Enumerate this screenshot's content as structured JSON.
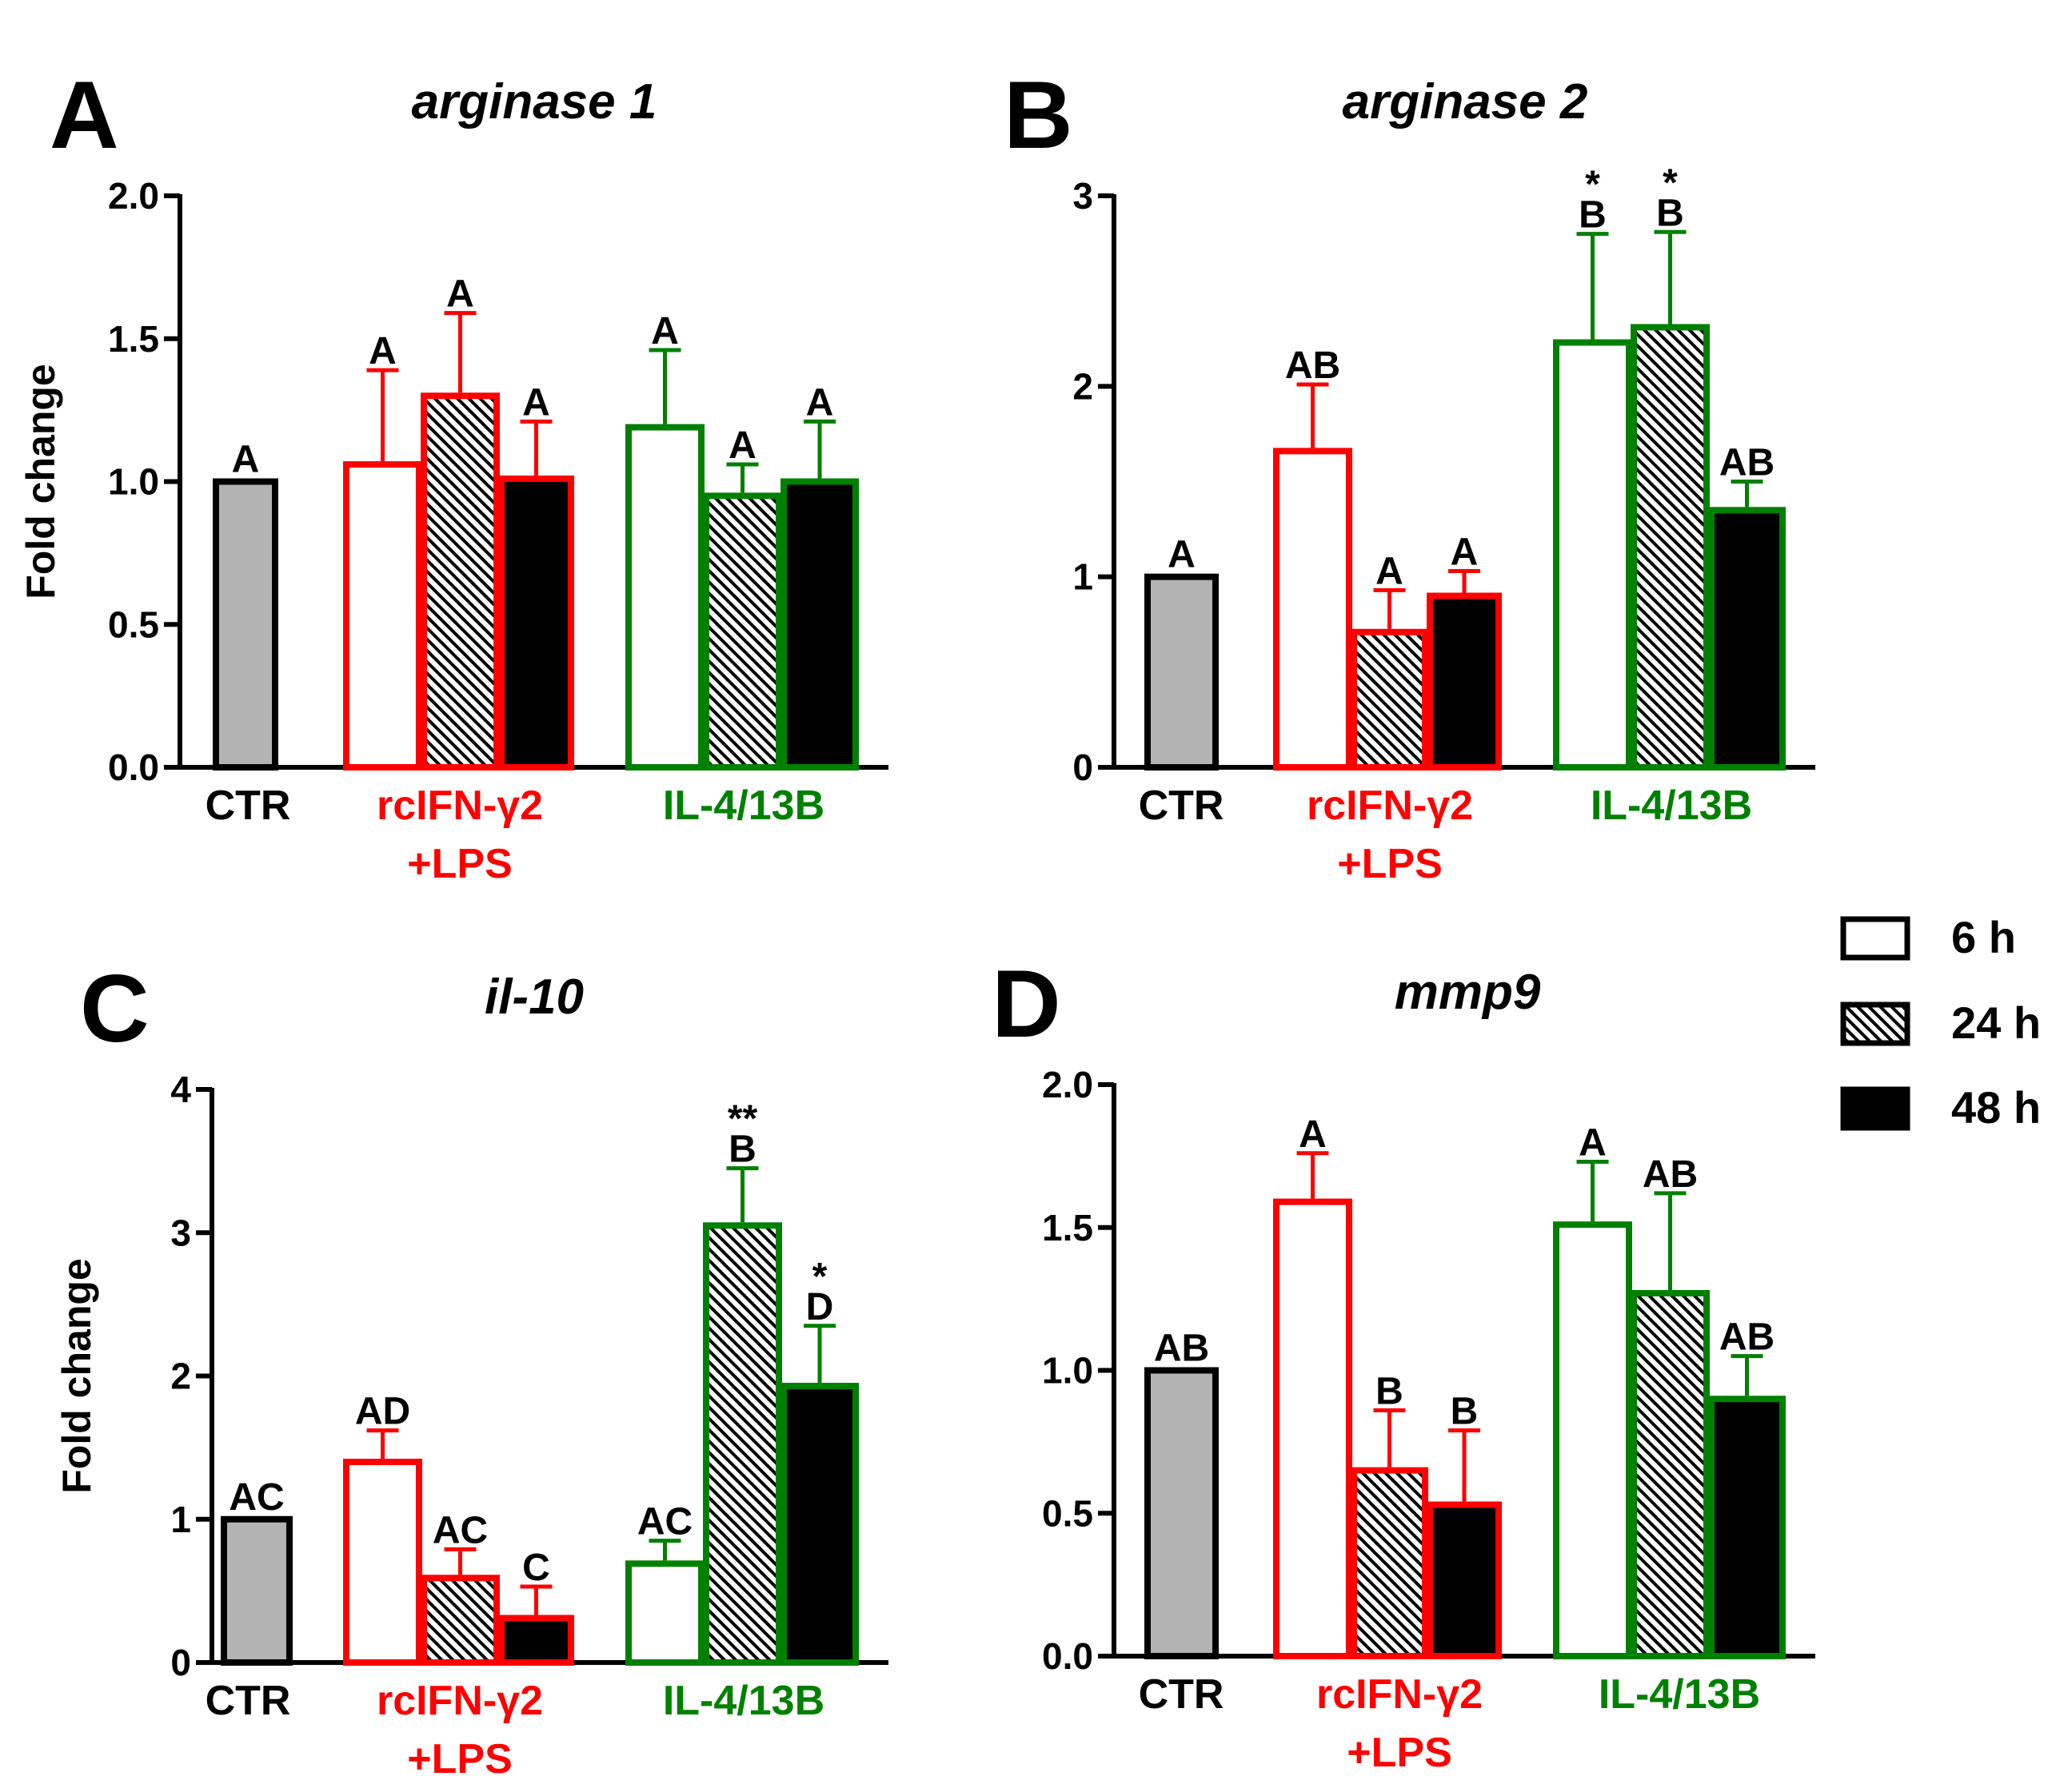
{
  "colors": {
    "ctr": "#000000",
    "ifn": "#ff0000",
    "il4": "#008000",
    "ctr_fill": "#b3b3b3"
  },
  "legend": {
    "items": [
      {
        "label": "6 h",
        "pattern": "open"
      },
      {
        "label": "24 h",
        "pattern": "hatched"
      },
      {
        "label": "48 h",
        "pattern": "solid"
      }
    ]
  },
  "chart_data": [
    {
      "type": "bar",
      "panel": "A",
      "title": "arginase 1",
      "ylabel": "Fold change",
      "ylim": [
        0,
        2.0
      ],
      "yticks": [
        "0.0",
        "0.5",
        "1.0",
        "1.5",
        "2.0"
      ],
      "groups": [
        {
          "label_lines": [
            "CTR"
          ],
          "color_key": "ctr",
          "bars": [
            {
              "series": "CTR",
              "value": 1.0,
              "error": 0,
              "sig": [
                "A"
              ]
            }
          ]
        },
        {
          "label_lines": [
            "rcIFN-γ2",
            "+LPS"
          ],
          "color_key": "ifn",
          "bars": [
            {
              "series": "6 h",
              "value": 1.06,
              "error": 0.33,
              "sig": [
                "A"
              ]
            },
            {
              "series": "24 h",
              "value": 1.3,
              "error": 0.29,
              "sig": [
                "A"
              ]
            },
            {
              "series": "48 h",
              "value": 1.01,
              "error": 0.2,
              "sig": [
                "A"
              ]
            }
          ]
        },
        {
          "label_lines": [
            "IL-4/13B"
          ],
          "color_key": "il4",
          "bars": [
            {
              "series": "6 h",
              "value": 1.19,
              "error": 0.27,
              "sig": [
                "A"
              ]
            },
            {
              "series": "24 h",
              "value": 0.95,
              "error": 0.11,
              "sig": [
                "A"
              ]
            },
            {
              "series": "48 h",
              "value": 1.0,
              "error": 0.21,
              "sig": [
                "A"
              ]
            }
          ]
        }
      ]
    },
    {
      "type": "bar",
      "panel": "B",
      "title": "arginase 2",
      "ylabel": "",
      "ylim": [
        0,
        3
      ],
      "yticks": [
        "0",
        "1",
        "2",
        "3"
      ],
      "groups": [
        {
          "label_lines": [
            "CTR"
          ],
          "color_key": "ctr",
          "bars": [
            {
              "series": "CTR",
              "value": 1.0,
              "error": 0,
              "sig": [
                "A"
              ]
            }
          ]
        },
        {
          "label_lines": [
            "rcIFN-γ2",
            "+LPS"
          ],
          "color_key": "ifn",
          "bars": [
            {
              "series": "6 h",
              "value": 1.66,
              "error": 0.35,
              "sig": [
                "AB"
              ]
            },
            {
              "series": "24 h",
              "value": 0.71,
              "error": 0.22,
              "sig": [
                "A"
              ]
            },
            {
              "series": "48 h",
              "value": 0.9,
              "error": 0.13,
              "sig": [
                "A"
              ]
            }
          ]
        },
        {
          "label_lines": [
            "IL-4/13B"
          ],
          "color_key": "il4",
          "bars": [
            {
              "series": "6 h",
              "value": 2.23,
              "error": 0.57,
              "sig": [
                "*",
                "B"
              ]
            },
            {
              "series": "24 h",
              "value": 2.31,
              "error": 0.5,
              "sig": [
                "*",
                "B"
              ]
            },
            {
              "series": "48 h",
              "value": 1.35,
              "error": 0.15,
              "sig": [
                "AB"
              ]
            }
          ]
        }
      ]
    },
    {
      "type": "bar",
      "panel": "C",
      "title": "il-10",
      "ylabel": "Fold change",
      "ylim": [
        0,
        4
      ],
      "yticks": [
        "0",
        "1",
        "2",
        "3",
        "4"
      ],
      "groups": [
        {
          "label_lines": [
            "CTR"
          ],
          "color_key": "ctr",
          "bars": [
            {
              "series": "CTR",
              "value": 1.0,
              "error": 0,
              "sig": [
                "AC"
              ]
            }
          ]
        },
        {
          "label_lines": [
            "rcIFN-γ2",
            "+LPS"
          ],
          "color_key": "ifn",
          "bars": [
            {
              "series": "6 h",
              "value": 1.4,
              "error": 0.22,
              "sig": [
                "AD"
              ]
            },
            {
              "series": "24 h",
              "value": 0.59,
              "error": 0.2,
              "sig": [
                "AC"
              ]
            },
            {
              "series": "48 h",
              "value": 0.31,
              "error": 0.22,
              "sig": [
                "C"
              ]
            }
          ]
        },
        {
          "label_lines": [
            "IL-4/13B"
          ],
          "color_key": "il4",
          "bars": [
            {
              "series": "6 h",
              "value": 0.69,
              "error": 0.16,
              "sig": [
                "AC"
              ]
            },
            {
              "series": "24 h",
              "value": 3.05,
              "error": 0.4,
              "sig": [
                "**",
                "B"
              ]
            },
            {
              "series": "48 h",
              "value": 1.93,
              "error": 0.42,
              "sig": [
                "*",
                "D"
              ]
            }
          ]
        }
      ]
    },
    {
      "type": "bar",
      "panel": "D",
      "title": "mmp9",
      "ylabel": "",
      "ylim": [
        0,
        2.0
      ],
      "yticks": [
        "0.0",
        "0.5",
        "1.0",
        "1.5",
        "2.0"
      ],
      "groups": [
        {
          "label_lines": [
            "CTR"
          ],
          "color_key": "ctr",
          "bars": [
            {
              "series": "CTR",
              "value": 1.0,
              "error": 0,
              "sig": [
                "AB"
              ]
            }
          ]
        },
        {
          "label_lines": [
            "rcIFN-γ2",
            "+LPS"
          ],
          "color_key": "ifn",
          "bars": [
            {
              "series": "6 h",
              "value": 1.59,
              "error": 0.17,
              "sig": [
                "A"
              ]
            },
            {
              "series": "24 h",
              "value": 0.65,
              "error": 0.21,
              "sig": [
                "B"
              ]
            },
            {
              "series": "48 h",
              "value": 0.53,
              "error": 0.26,
              "sig": [
                "B"
              ]
            }
          ]
        },
        {
          "label_lines": [
            "IL-4/13B"
          ],
          "color_key": "il4",
          "bars": [
            {
              "series": "6 h",
              "value": 1.51,
              "error": 0.22,
              "sig": [
                "A"
              ]
            },
            {
              "series": "24 h",
              "value": 1.27,
              "error": 0.35,
              "sig": [
                "AB"
              ]
            },
            {
              "series": "48 h",
              "value": 0.9,
              "error": 0.15,
              "sig": [
                "AB"
              ]
            }
          ]
        }
      ]
    }
  ]
}
